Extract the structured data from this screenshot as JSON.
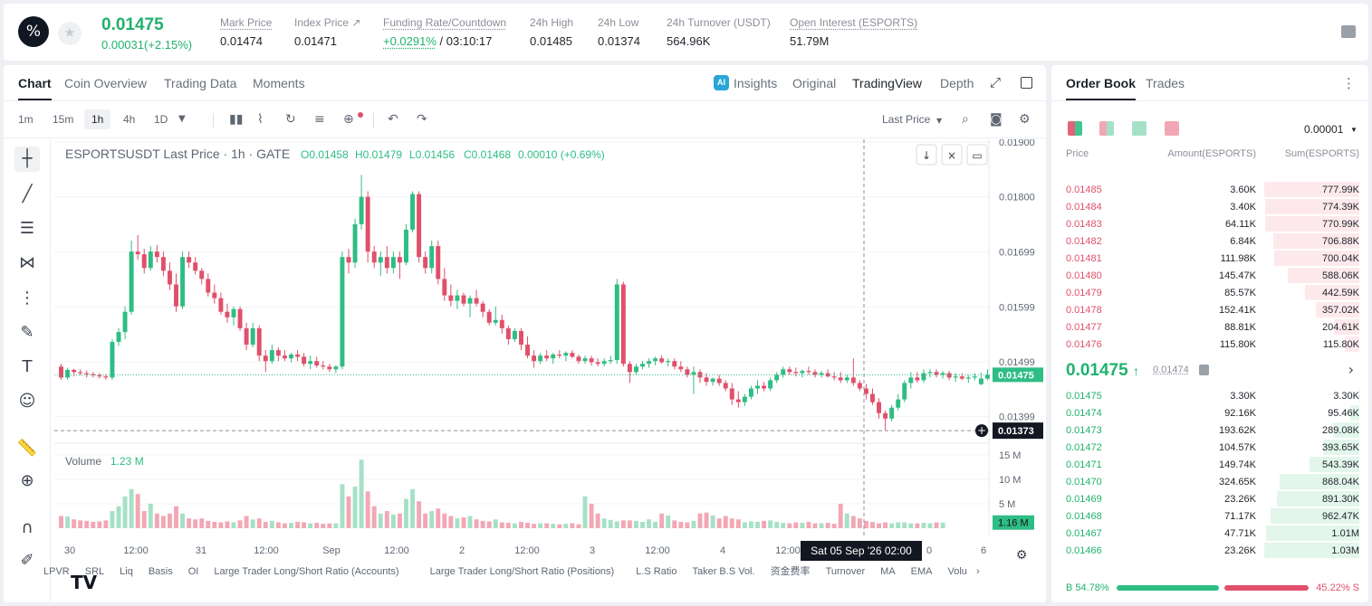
{
  "ticker": {
    "last": "0.01475",
    "change": "0.00031(+2.15%)",
    "logo": "esports-logo-icon",
    "stats": [
      {
        "label": "Mark Price",
        "value": "0.01474"
      },
      {
        "label": "Index Price ↗",
        "value": "0.01471"
      },
      {
        "label": "Funding Rate/Countdown",
        "value": "+0.0291%",
        "value2": "/ 03:10:17"
      },
      {
        "label": "24h High",
        "value": "0.01485"
      },
      {
        "label": "24h Low",
        "value": "0.01374"
      },
      {
        "label": "24h Turnover (USDT)",
        "value": "564.96K"
      },
      {
        "label": "Open Interest (ESPORTS)",
        "value": "51.79M"
      }
    ]
  },
  "chart_tabs": [
    "Chart",
    "Coin Overview",
    "Trading Data",
    "Moments"
  ],
  "chart_tabs_right": [
    "Insights",
    "Original",
    "TradingView",
    "Depth"
  ],
  "timeframes": [
    "1m",
    "15m",
    "1h",
    "4h",
    "1D"
  ],
  "last_price_select": "Last Price",
  "legend": {
    "symbol": "ESPORTSUSDT Last Price · 1h · GATE",
    "o": "O0.01458",
    "h": "H0.01479",
    "l": "L0.01456",
    "c": "C0.01468",
    "chg": "0.00010 (+0.69%)"
  },
  "volume_legend": {
    "label": "Volume",
    "value": "1.23 M"
  },
  "price_axis": [
    "0.01900",
    "0.01800",
    "0.01699",
    "0.01599",
    "0.01499",
    "0.01399"
  ],
  "volume_axis": [
    "15 M",
    "10 M",
    "5 M"
  ],
  "time_axis": [
    "30",
    "12:00",
    "31",
    "12:00",
    "Sep",
    "12:00",
    "2",
    "12:00",
    "3",
    "12:00",
    "4",
    "12:00",
    "",
    "0",
    "6"
  ],
  "price_tags": {
    "last": "0.01475",
    "cursor": "0.01373",
    "volume": "1.16 M"
  },
  "crosshair_time": "Sat 05 Sep '26   02:00",
  "indicators": [
    "LPVR",
    "SRL",
    "Liq",
    "Basis",
    "OI",
    "Large Trader Long/Short Ratio (Accounts)",
    "Large Trader Long/Short Ratio (Positions)",
    "L.S Ratio",
    "Taker B.S Vol.",
    "资金费率",
    "Turnover",
    "MA",
    "EMA",
    "Volu"
  ],
  "colors": {
    "up": "#2ebd85",
    "down": "#e0506a",
    "up_vol": "#a6e1c7",
    "down_vol": "#f2a8b4"
  },
  "chart_data": {
    "type": "candlestick",
    "series": "ESPORTSUSDT 1h",
    "candles": [
      [
        0.0149,
        0.01495,
        0.01466,
        0.0147
      ],
      [
        0.0147,
        0.01488,
        0.01466,
        0.01484
      ],
      [
        0.01484,
        0.01486,
        0.01472,
        0.0148
      ],
      [
        0.0148,
        0.01485,
        0.01474,
        0.01478
      ],
      [
        0.01478,
        0.01483,
        0.0147,
        0.01476
      ],
      [
        0.01476,
        0.0148,
        0.0147,
        0.01474
      ],
      [
        0.01474,
        0.01478,
        0.01468,
        0.01472
      ],
      [
        0.01472,
        0.01476,
        0.01466,
        0.0147
      ],
      [
        0.0147,
        0.0154,
        0.01466,
        0.01535
      ],
      [
        0.01535,
        0.0156,
        0.01528,
        0.01553
      ],
      [
        0.01553,
        0.016,
        0.0154,
        0.0159
      ],
      [
        0.0159,
        0.0172,
        0.01585,
        0.017
      ],
      [
        0.017,
        0.0173,
        0.01685,
        0.01695
      ],
      [
        0.01695,
        0.01705,
        0.0166,
        0.0167
      ],
      [
        0.0167,
        0.0171,
        0.01665,
        0.017
      ],
      [
        0.017,
        0.01712,
        0.0168,
        0.0169
      ],
      [
        0.0169,
        0.017,
        0.01655,
        0.01665
      ],
      [
        0.01665,
        0.0168,
        0.0163,
        0.0164
      ],
      [
        0.0164,
        0.0166,
        0.0159,
        0.016
      ],
      [
        0.016,
        0.017,
        0.01595,
        0.0169
      ],
      [
        0.0169,
        0.017,
        0.0167,
        0.0168
      ],
      [
        0.0168,
        0.0169,
        0.01658,
        0.01665
      ],
      [
        0.01665,
        0.0167,
        0.0164,
        0.0165
      ],
      [
        0.0165,
        0.0166,
        0.01618,
        0.01625
      ],
      [
        0.01625,
        0.0164,
        0.01605,
        0.01615
      ],
      [
        0.01615,
        0.01625,
        0.01585,
        0.0159
      ],
      [
        0.0159,
        0.01605,
        0.0157,
        0.0158
      ],
      [
        0.0158,
        0.016,
        0.01565,
        0.01595
      ],
      [
        0.01595,
        0.016,
        0.01555,
        0.0156
      ],
      [
        0.0156,
        0.0157,
        0.0152,
        0.0153
      ],
      [
        0.0153,
        0.0157,
        0.01525,
        0.0156
      ],
      [
        0.0156,
        0.01565,
        0.015,
        0.0151
      ],
      [
        0.0151,
        0.0152,
        0.0148,
        0.015
      ],
      [
        0.015,
        0.0153,
        0.01495,
        0.0152
      ],
      [
        0.0152,
        0.01525,
        0.015,
        0.0151
      ],
      [
        0.0151,
        0.0152,
        0.015,
        0.01505
      ],
      [
        0.01505,
        0.01515,
        0.01498,
        0.01512
      ],
      [
        0.01512,
        0.0152,
        0.015,
        0.01508
      ],
      [
        0.01508,
        0.01515,
        0.0149,
        0.01495
      ],
      [
        0.01495,
        0.0151,
        0.01485,
        0.015
      ],
      [
        0.015,
        0.01508,
        0.01488,
        0.01492
      ],
      [
        0.01492,
        0.015,
        0.01485,
        0.0149
      ],
      [
        0.0149,
        0.01495,
        0.0148,
        0.01485
      ],
      [
        0.01485,
        0.01492,
        0.01478,
        0.0149
      ],
      [
        0.0149,
        0.017,
        0.01485,
        0.0169
      ],
      [
        0.0169,
        0.01705,
        0.0166,
        0.0168
      ],
      [
        0.0168,
        0.0176,
        0.0167,
        0.0175
      ],
      [
        0.0175,
        0.0184,
        0.0174,
        0.018
      ],
      [
        0.018,
        0.0181,
        0.0168,
        0.017
      ],
      [
        0.017,
        0.0171,
        0.0167,
        0.0168
      ],
      [
        0.0168,
        0.017,
        0.01655,
        0.0169
      ],
      [
        0.0169,
        0.0171,
        0.0166,
        0.0167
      ],
      [
        0.0167,
        0.017,
        0.0166,
        0.0169
      ],
      [
        0.0169,
        0.017,
        0.0165,
        0.0168
      ],
      [
        0.0168,
        0.0175,
        0.01675,
        0.0174
      ],
      [
        0.0174,
        0.0181,
        0.01735,
        0.01805
      ],
      [
        0.01805,
        0.0181,
        0.0168,
        0.0169
      ],
      [
        0.0169,
        0.017,
        0.0166,
        0.0167
      ],
      [
        0.0167,
        0.0172,
        0.0166,
        0.0171
      ],
      [
        0.0171,
        0.0172,
        0.0164,
        0.0165
      ],
      [
        0.0165,
        0.0167,
        0.0161,
        0.0162
      ],
      [
        0.0162,
        0.0164,
        0.016,
        0.0161
      ],
      [
        0.0161,
        0.0163,
        0.01595,
        0.0162
      ],
      [
        0.0162,
        0.01625,
        0.016,
        0.01605
      ],
      [
        0.01605,
        0.0162,
        0.0158,
        0.01615
      ],
      [
        0.01615,
        0.0163,
        0.016,
        0.01605
      ],
      [
        0.01605,
        0.0161,
        0.0158,
        0.0159
      ],
      [
        0.0159,
        0.01595,
        0.01565,
        0.0157
      ],
      [
        0.0157,
        0.016,
        0.01565,
        0.01575
      ],
      [
        0.01575,
        0.01585,
        0.0155,
        0.0156
      ],
      [
        0.0156,
        0.01565,
        0.0153,
        0.0154
      ],
      [
        0.0154,
        0.0156,
        0.01535,
        0.01555
      ],
      [
        0.01555,
        0.0156,
        0.0152,
        0.0153
      ],
      [
        0.0153,
        0.01545,
        0.01505,
        0.0151
      ],
      [
        0.0151,
        0.0152,
        0.01488,
        0.015
      ],
      [
        0.015,
        0.01515,
        0.01495,
        0.0151
      ],
      [
        0.0151,
        0.0152,
        0.015,
        0.01505
      ],
      [
        0.01505,
        0.01515,
        0.01495,
        0.01512
      ],
      [
        0.01512,
        0.0152,
        0.01505,
        0.0151
      ],
      [
        0.0151,
        0.01518,
        0.015,
        0.01515
      ],
      [
        0.01515,
        0.0152,
        0.01505,
        0.01508
      ],
      [
        0.01508,
        0.01512,
        0.01495,
        0.015
      ],
      [
        0.015,
        0.0151,
        0.01495,
        0.01505
      ],
      [
        0.01505,
        0.0151,
        0.01492,
        0.01498
      ],
      [
        0.01498,
        0.01505,
        0.0149,
        0.01495
      ],
      [
        0.01495,
        0.01505,
        0.0149,
        0.015
      ],
      [
        0.015,
        0.0151,
        0.01495,
        0.01502
      ],
      [
        0.01502,
        0.0165,
        0.01495,
        0.0164
      ],
      [
        0.0164,
        0.01645,
        0.0149,
        0.01495
      ],
      [
        0.01495,
        0.015,
        0.0146,
        0.0148
      ],
      [
        0.0148,
        0.01495,
        0.01475,
        0.0149
      ],
      [
        0.0149,
        0.015,
        0.01485,
        0.01495
      ],
      [
        0.01495,
        0.01505,
        0.01488,
        0.015
      ],
      [
        0.015,
        0.01508,
        0.01492,
        0.01505
      ],
      [
        0.01505,
        0.0151,
        0.01495,
        0.01498
      ],
      [
        0.01498,
        0.01505,
        0.0149,
        0.015
      ],
      [
        0.015,
        0.01505,
        0.01485,
        0.0149
      ],
      [
        0.0149,
        0.015,
        0.0148,
        0.01485
      ],
      [
        0.01485,
        0.0149,
        0.0147,
        0.01475
      ],
      [
        0.01475,
        0.0149,
        0.0144,
        0.0148
      ],
      [
        0.0148,
        0.01485,
        0.0146,
        0.0147
      ],
      [
        0.0147,
        0.01478,
        0.01455,
        0.01462
      ],
      [
        0.01462,
        0.0147,
        0.01455,
        0.01468
      ],
      [
        0.01468,
        0.01475,
        0.01455,
        0.0146
      ],
      [
        0.0146,
        0.01465,
        0.01445,
        0.0145
      ],
      [
        0.0145,
        0.0146,
        0.0142,
        0.0143
      ],
      [
        0.0143,
        0.01445,
        0.01415,
        0.01425
      ],
      [
        0.01425,
        0.0144,
        0.01418,
        0.01435
      ],
      [
        0.01435,
        0.01455,
        0.0143,
        0.0145
      ],
      [
        0.0145,
        0.01465,
        0.0144,
        0.01455
      ],
      [
        0.01455,
        0.01462,
        0.01445,
        0.0145
      ],
      [
        0.0145,
        0.0147,
        0.01445,
        0.01465
      ],
      [
        0.01465,
        0.0148,
        0.0146,
        0.01475
      ],
      [
        0.01475,
        0.0149,
        0.0147,
        0.01485
      ],
      [
        0.01485,
        0.0149,
        0.01475,
        0.0148
      ],
      [
        0.0148,
        0.01488,
        0.01472,
        0.01478
      ],
      [
        0.01478,
        0.01485,
        0.0147,
        0.01482
      ],
      [
        0.01482,
        0.0149,
        0.01475,
        0.0148
      ],
      [
        0.0148,
        0.01485,
        0.0147,
        0.01475
      ],
      [
        0.01475,
        0.01482,
        0.0147,
        0.01478
      ],
      [
        0.01478,
        0.01485,
        0.0147,
        0.01472
      ],
      [
        0.01472,
        0.0148,
        0.01465,
        0.0147
      ],
      [
        0.0147,
        0.0148,
        0.0146,
        0.01465
      ],
      [
        0.01465,
        0.01475,
        0.0146,
        0.0147
      ],
      [
        0.0147,
        0.01505,
        0.01455,
        0.0146
      ],
      [
        0.0146,
        0.01465,
        0.01445,
        0.0145
      ],
      [
        0.0145,
        0.01458,
        0.0143,
        0.0144
      ],
      [
        0.0144,
        0.0145,
        0.0142,
        0.01425
      ],
      [
        0.01425,
        0.01432,
        0.01395,
        0.01405
      ],
      [
        0.01405,
        0.0141,
        0.01374,
        0.01395
      ],
      [
        0.01395,
        0.0142,
        0.0139,
        0.01415
      ],
      [
        0.01415,
        0.0144,
        0.0141,
        0.0143
      ],
      [
        0.0143,
        0.01465,
        0.01425,
        0.0146
      ],
      [
        0.0146,
        0.0148,
        0.0145,
        0.0147
      ],
      [
        0.0147,
        0.0148,
        0.0146,
        0.01465
      ],
      [
        0.01465,
        0.01485,
        0.0146,
        0.01478
      ],
      [
        0.01478,
        0.01485,
        0.0147,
        0.0148
      ],
      [
        0.0148,
        0.01485,
        0.0147,
        0.01475
      ],
      [
        0.01475,
        0.01482,
        0.01468,
        0.01478
      ],
      [
        0.01478,
        0.01482,
        0.01465,
        0.0147
      ],
      [
        0.0147,
        0.01478,
        0.01462,
        0.01472
      ],
      [
        0.01472,
        0.01478,
        0.01465,
        0.01468
      ],
      [
        0.01468,
        0.01475,
        0.0146,
        0.0147
      ],
      [
        0.0147,
        0.01478,
        0.01465,
        0.01472
      ],
      [
        0.01458,
        0.01479,
        0.01456,
        0.01468
      ],
      [
        0.01468,
        0.01485,
        0.01465,
        0.01475
      ]
    ],
    "volume_millions": [
      2.5,
      2.4,
      1.8,
      1.6,
      1.5,
      1.3,
      1.4,
      1.6,
      3.5,
      4.5,
      6.5,
      8.0,
      7.0,
      3.5,
      5.0,
      3.0,
      2.5,
      3.0,
      4.5,
      3.0,
      2.0,
      1.8,
      2.0,
      1.5,
      1.3,
      1.2,
      1.4,
      1.2,
      1.6,
      2.5,
      1.8,
      2.0,
      1.3,
      1.5,
      1.2,
      1.0,
      1.1,
      1.3,
      1.2,
      1.0,
      1.1,
      0.9,
      1.0,
      1.0,
      9.0,
      6.5,
      8.5,
      14.0,
      7.5,
      4.5,
      3.0,
      3.5,
      2.8,
      3.0,
      6.0,
      8.0,
      5.5,
      3.0,
      3.5,
      4.0,
      3.0,
      2.5,
      2.0,
      2.2,
      2.5,
      1.8,
      1.5,
      1.4,
      1.8,
      1.2,
      1.1,
      1.0,
      1.3,
      1.1,
      0.9,
      1.0,
      1.0,
      0.9,
      0.8,
      0.9,
      1.0,
      0.8,
      6.5,
      5.0,
      3.0,
      2.0,
      1.7,
      1.4,
      1.6,
      1.6,
      1.5,
      1.3,
      1.8,
      1.3,
      3.0,
      2.6,
      1.6,
      1.3,
      1.2,
      1.5,
      3.0,
      3.2,
      2.6,
      2.0,
      2.5,
      2.0,
      1.8,
      1.2,
      1.4,
      1.3,
      1.5,
      1.6,
      1.3,
      1.1,
      1.0,
      1.2,
      1.1,
      1.3,
      1.0,
      1.0,
      1.1,
      0.9,
      5.0,
      3.0,
      2.5,
      2.0,
      1.5,
      1.3,
      1.0,
      1.2,
      1.0,
      1.2,
      1.2,
      1.0,
      1.0,
      1.1,
      1.0,
      1.2,
      1.16
    ],
    "ylim": [
      0.0136,
      0.01905
    ],
    "volume_ylim_millions": [
      0,
      17
    ]
  },
  "orderbook": {
    "tabs": [
      "Order Book",
      "Trades"
    ],
    "tick": "0.00001",
    "headers": [
      "Price",
      "Amount(ESPORTS)",
      "Sum(ESPORTS)"
    ],
    "asks": [
      [
        "0.01485",
        "3.60K",
        "777.99K",
        1.0
      ],
      [
        "0.01484",
        "3.40K",
        "774.39K",
        0.995
      ],
      [
        "0.01483",
        "64.11K",
        "770.99K",
        0.991
      ],
      [
        "0.01482",
        "6.84K",
        "706.88K",
        0.908
      ],
      [
        "0.01481",
        "111.98K",
        "700.04K",
        0.9
      ],
      [
        "0.01480",
        "145.47K",
        "588.06K",
        0.756
      ],
      [
        "0.01479",
        "85.57K",
        "442.59K",
        0.569
      ],
      [
        "0.01478",
        "152.41K",
        "357.02K",
        0.459
      ],
      [
        "0.01477",
        "88.81K",
        "204.61K",
        0.263
      ],
      [
        "0.01476",
        "115.80K",
        "115.80K",
        0.149
      ]
    ],
    "mid": {
      "price": "0.01475",
      "arrow": "↑",
      "mark": "0.01474"
    },
    "bids": [
      [
        "0.01475",
        "3.30K",
        "3.30K",
        0.003
      ],
      [
        "0.01474",
        "92.16K",
        "95.46K",
        0.093
      ],
      [
        "0.01473",
        "193.62K",
        "289.08K",
        0.281
      ],
      [
        "0.01472",
        "104.57K",
        "393.65K",
        0.382
      ],
      [
        "0.01471",
        "149.74K",
        "543.39K",
        0.527
      ],
      [
        "0.01470",
        "324.65K",
        "868.04K",
        0.843
      ],
      [
        "0.01469",
        "23.26K",
        "891.30K",
        0.866
      ],
      [
        "0.01468",
        "71.17K",
        "962.47K",
        0.935
      ],
      [
        "0.01467",
        "47.71K",
        "1.01M",
        0.98
      ],
      [
        "0.01466",
        "23.26K",
        "1.03M",
        1.0
      ]
    ],
    "buy_ratio": {
      "label": "B 54.78%",
      "value": 54.78
    },
    "sell_ratio": {
      "label": "45.22% S",
      "value": 45.22
    }
  }
}
